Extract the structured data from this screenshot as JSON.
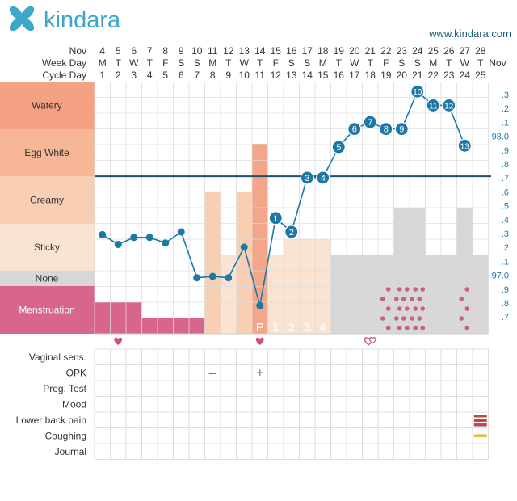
{
  "brand": {
    "name": "kindara",
    "url": "www.kindara.com",
    "logo_icon": "kindara-flower-logo",
    "logo_color": "#3ba8c9"
  },
  "colors": {
    "temp_line": "#1e78a6",
    "coverline": "#1d4f6b",
    "watery": "#f4a184",
    "egg_white": "#f7b797",
    "creamy": "#f9cfb4",
    "sticky": "#fbe3d2",
    "none": "#d7d7d7",
    "menstruation": "#d8658c",
    "spotting": "#c95f82",
    "heart": "#cf4f83",
    "lower_back_pain": "#b94a4a",
    "coughing": "#d5c23a"
  },
  "header_labels": {
    "month": "Nov",
    "weekday": "Week Day",
    "cycle": "Cycle Day"
  },
  "days": [
    {
      "date": "4",
      "wd": "M",
      "cd": "1"
    },
    {
      "date": "5",
      "wd": "T",
      "cd": "2"
    },
    {
      "date": "6",
      "wd": "W",
      "cd": "3"
    },
    {
      "date": "7",
      "wd": "T",
      "cd": "4"
    },
    {
      "date": "8",
      "wd": "F",
      "cd": "5"
    },
    {
      "date": "9",
      "wd": "S",
      "cd": "6"
    },
    {
      "date": "10",
      "wd": "S",
      "cd": "7"
    },
    {
      "date": "11",
      "wd": "M",
      "cd": "8"
    },
    {
      "date": "12",
      "wd": "T",
      "cd": "9"
    },
    {
      "date": "13",
      "wd": "W",
      "cd": "10"
    },
    {
      "date": "14",
      "wd": "T",
      "cd": "11"
    },
    {
      "date": "15",
      "wd": "F",
      "cd": "12"
    },
    {
      "date": "16",
      "wd": "S",
      "cd": "13"
    },
    {
      "date": "17",
      "wd": "S",
      "cd": "14"
    },
    {
      "date": "18",
      "wd": "M",
      "cd": "15"
    },
    {
      "date": "19",
      "wd": "T",
      "cd": "16"
    },
    {
      "date": "20",
      "wd": "W",
      "cd": "17"
    },
    {
      "date": "21",
      "wd": "T",
      "cd": "18"
    },
    {
      "date": "22",
      "wd": "F",
      "cd": "19"
    },
    {
      "date": "23",
      "wd": "S",
      "cd": "20"
    },
    {
      "date": "24",
      "wd": "S",
      "cd": "21"
    },
    {
      "date": "25",
      "wd": "M",
      "cd": "22"
    },
    {
      "date": "26",
      "wd": "T",
      "cd": "23"
    },
    {
      "date": "27",
      "wd": "W",
      "cd": "24"
    },
    {
      "date": "28",
      "wd": "T",
      "cd": "25"
    }
  ],
  "trailing_month": "Nov",
  "fluid_labels": [
    "Watery",
    "Egg White",
    "Creamy",
    "Sticky",
    "None",
    "Menstruation"
  ],
  "temp_axis": [
    ".3",
    ".2",
    ".1",
    "98.0",
    ".9",
    ".8",
    ".7",
    ".6",
    ".5",
    ".4",
    ".3",
    ".2",
    ".1",
    "97.0",
    ".9",
    ".8",
    ".7"
  ],
  "chart_data": {
    "type": "line",
    "temperatures": [
      97.3,
      97.23,
      97.28,
      97.28,
      97.24,
      97.32,
      96.99,
      97.0,
      96.99,
      97.21,
      96.79,
      97.42,
      97.32,
      97.71,
      97.71,
      97.93,
      98.06,
      98.11,
      98.06,
      98.06,
      98.33,
      98.23,
      98.23,
      97.94
    ],
    "temp_labels": [
      "",
      "",
      "",
      "",
      "",
      "",
      "",
      "",
      "",
      "",
      "",
      "1",
      "2",
      "3",
      "4",
      "5",
      "6",
      "7",
      "8",
      "9",
      "10",
      "11",
      "12",
      "13"
    ],
    "coverline": 97.72,
    "ylim": [
      96.65,
      98.45
    ],
    "fluid_levels": [
      "menstruation",
      "menstruation",
      "menstruation",
      "menstruation",
      "menstruation",
      "menstruation",
      "menstruation",
      "creamy",
      "sticky",
      "creamy",
      "egg_white",
      "sticky",
      "sticky",
      "sticky",
      "sticky",
      "none",
      "none",
      "none",
      "none",
      "creamy",
      "creamy",
      "none",
      "none",
      "creamy",
      "none"
    ],
    "menstruation_flow": [
      2,
      2,
      2,
      1,
      1,
      1,
      1,
      0,
      0,
      0,
      0,
      0,
      0,
      0,
      0,
      0,
      0,
      0,
      0,
      0,
      0,
      0,
      0,
      0,
      0
    ],
    "spotting_days": [
      18,
      19,
      20,
      23
    ],
    "peak_markers": [
      {
        "day": 10,
        "label": "P"
      },
      {
        "day": 11,
        "label": "1"
      },
      {
        "day": 12,
        "label": "2"
      },
      {
        "day": 13,
        "label": "3"
      },
      {
        "day": 14,
        "label": "4"
      }
    ],
    "hearts": [
      {
        "day": 1,
        "style": "filled"
      },
      {
        "day": 10,
        "style": "filled"
      },
      {
        "day": 17,
        "style": "outline"
      }
    ]
  },
  "trackers": [
    {
      "label": "Vaginal sens.",
      "marks": []
    },
    {
      "label": "OPK",
      "marks": [
        {
          "day": 7,
          "symbol": "–"
        },
        {
          "day": 10,
          "symbol": "+"
        }
      ]
    },
    {
      "label": "Preg. Test",
      "marks": []
    },
    {
      "label": "Mood",
      "marks": []
    },
    {
      "label": "Lower back pain",
      "marks": [
        {
          "day": 24,
          "type": "bars"
        }
      ]
    },
    {
      "label": "Coughing",
      "marks": [
        {
          "day": 24,
          "type": "bar"
        }
      ]
    },
    {
      "label": "Journal",
      "marks": []
    }
  ]
}
